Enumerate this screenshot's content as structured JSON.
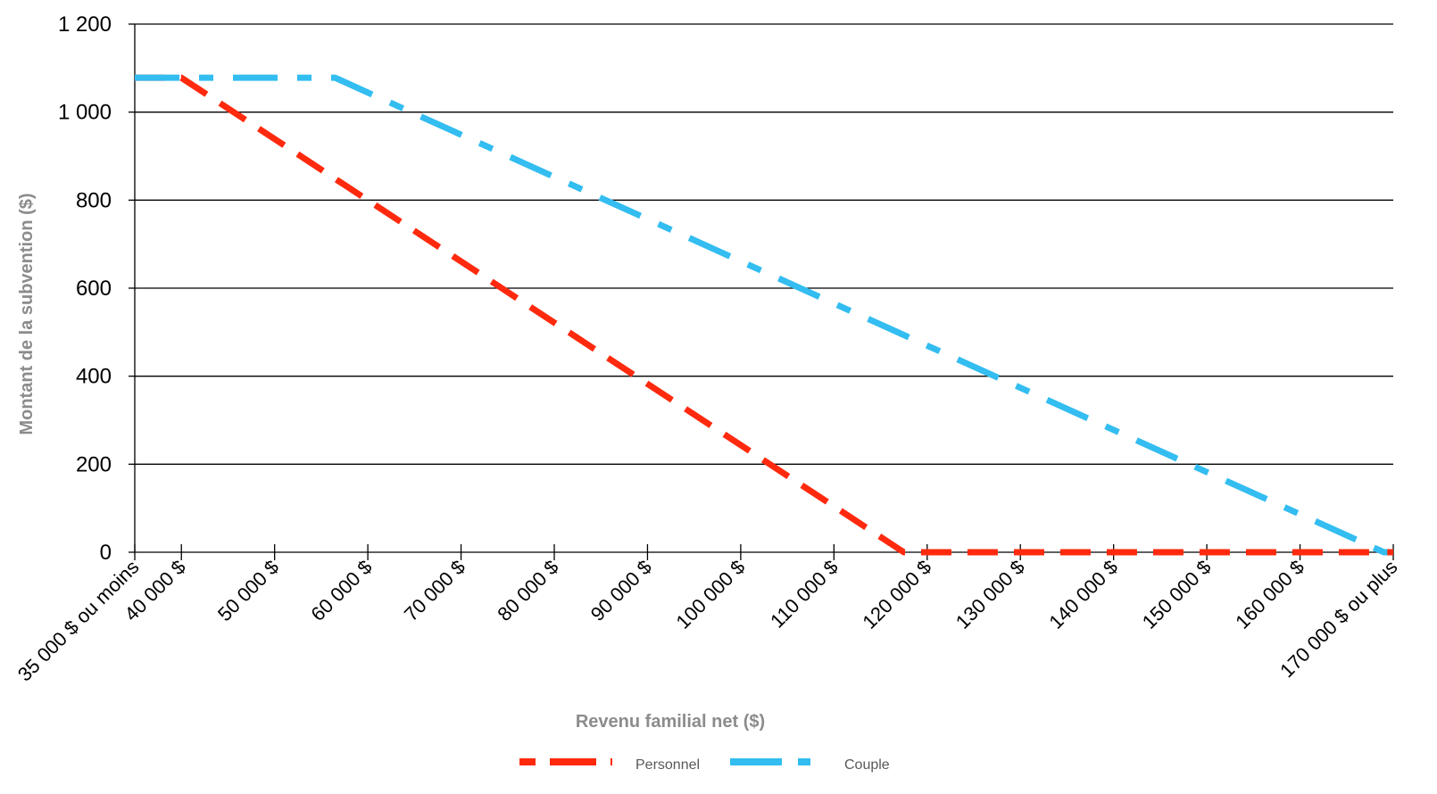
{
  "chart_data": {
    "type": "line",
    "title": "",
    "xlabel": "Revenu familial net ($)",
    "ylabel": "Montant de la subvention ($)",
    "categories": [
      "35 000 $ ou moins",
      "40 000 $",
      "50 000 $",
      "60 000 $",
      "70 000 $",
      "80 000 $",
      "90 000 $",
      "100 000 $",
      "110 000 $",
      "120 000 $",
      "130 000 $",
      "140 000 $",
      "150 000 $",
      "160 000 $",
      "170 000 $ ou plus"
    ],
    "y_ticks": [
      "0",
      "200",
      "400",
      "600",
      "800",
      "1 000",
      "1 200"
    ],
    "y_tick_values": [
      0,
      200,
      400,
      600,
      800,
      1000,
      1200
    ],
    "ylim": [
      0,
      1200
    ],
    "xlim": [
      35000,
      170000
    ],
    "grid": true,
    "legend_position": "bottom",
    "series": [
      {
        "name": "Personnel",
        "color": "#ff2a0e",
        "points": [
          {
            "x": 35000,
            "y": 1078
          },
          {
            "x": 40000,
            "y": 1078
          },
          {
            "x": 117500,
            "y": 0
          },
          {
            "x": 170000,
            "y": 0
          }
        ]
      },
      {
        "name": "Couple",
        "color": "#33bdf0",
        "points": [
          {
            "x": 35000,
            "y": 1078
          },
          {
            "x": 56500,
            "y": 1078
          },
          {
            "x": 169000,
            "y": 0
          },
          {
            "x": 170000,
            "y": 0
          }
        ]
      }
    ]
  }
}
